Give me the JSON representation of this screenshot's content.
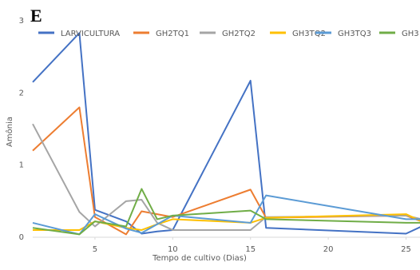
{
  "chart_data": {
    "type": "line",
    "title": "E",
    "x_label": "Tempo de cultivo (Dias)",
    "y_label": "Amônia",
    "x": [
      1,
      4,
      5,
      7,
      8,
      9,
      10,
      15,
      16,
      25,
      26
    ],
    "series": [
      {
        "name": "LARVICULTURA",
        "color": "#4472c4",
        "values": [
          2.15,
          2.83,
          0.38,
          0.22,
          0.05,
          0.08,
          0.1,
          2.17,
          0.13,
          0.05,
          0.15
        ]
      },
      {
        "name": "GH2TQ1",
        "color": "#ed7d31",
        "values": [
          1.2,
          1.8,
          0.28,
          0.04,
          0.36,
          0.32,
          0.28,
          0.66,
          0.27,
          0.3,
          0.22
        ]
      },
      {
        "name": "GH2TQ2",
        "color": "#a5a5a5",
        "values": [
          1.57,
          0.35,
          0.15,
          0.5,
          0.52,
          0.2,
          0.1,
          0.1,
          0.28,
          0.3,
          0.25
        ]
      },
      {
        "name": "GH3TQ2",
        "color": "#ffc000",
        "values": [
          0.1,
          0.1,
          0.22,
          0.13,
          0.1,
          0.18,
          0.25,
          0.2,
          0.27,
          0.32,
          0.22
        ]
      },
      {
        "name": "GH3TQ3",
        "color": "#5b9bd5",
        "values": [
          0.2,
          0.04,
          0.32,
          0.12,
          0.06,
          0.18,
          0.3,
          0.2,
          0.58,
          0.25,
          0.25
        ]
      },
      {
        "name": "GH3",
        "color": "#70ad47",
        "values": [
          0.13,
          0.04,
          0.22,
          0.15,
          0.67,
          0.25,
          0.3,
          0.37,
          0.25,
          0.2,
          0.2
        ]
      }
    ],
    "xlim": [
      1,
      26
    ],
    "ylim": [
      0,
      3
    ],
    "xticks": [
      5,
      10,
      15,
      20,
      25
    ],
    "yticks": [
      0,
      1,
      2,
      3
    ],
    "grid": false
  }
}
